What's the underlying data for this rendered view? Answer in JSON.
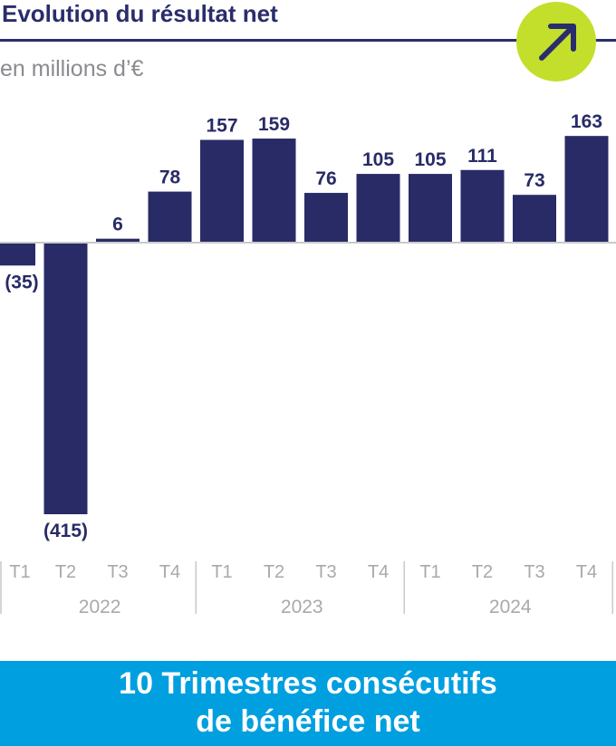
{
  "header": {
    "title": "Evolution du résultat net",
    "subtitle": "en millions d’€"
  },
  "banner": {
    "line1": "10 Trimestres consécutifs",
    "line2": "de bénéfice net"
  },
  "colors": {
    "bar": "#282b66",
    "title": "#2a2d6b",
    "badge": "#c4de2c",
    "banner": "#009fdf",
    "axis_text": "#a8a9ad"
  },
  "icons": {
    "badge": "arrow-up-right-icon"
  },
  "chart_data": {
    "type": "bar",
    "categories": [
      "T1",
      "T2",
      "T3",
      "T4",
      "T1",
      "T2",
      "T3",
      "T4",
      "T1",
      "T2",
      "T3",
      "T4"
    ],
    "groups": [
      {
        "label": "2022",
        "count": 4
      },
      {
        "label": "2023",
        "count": 4
      },
      {
        "label": "2024",
        "count": 4
      }
    ],
    "values": [
      -35,
      -415,
      6,
      78,
      157,
      159,
      76,
      105,
      105,
      111,
      73,
      163
    ],
    "value_labels": [
      "(35)",
      "(415)",
      "6",
      "78",
      "157",
      "159",
      "76",
      "105",
      "105",
      "111",
      "73",
      "163"
    ],
    "ylim": [
      -415,
      163
    ],
    "grid": false,
    "legend": "none"
  }
}
